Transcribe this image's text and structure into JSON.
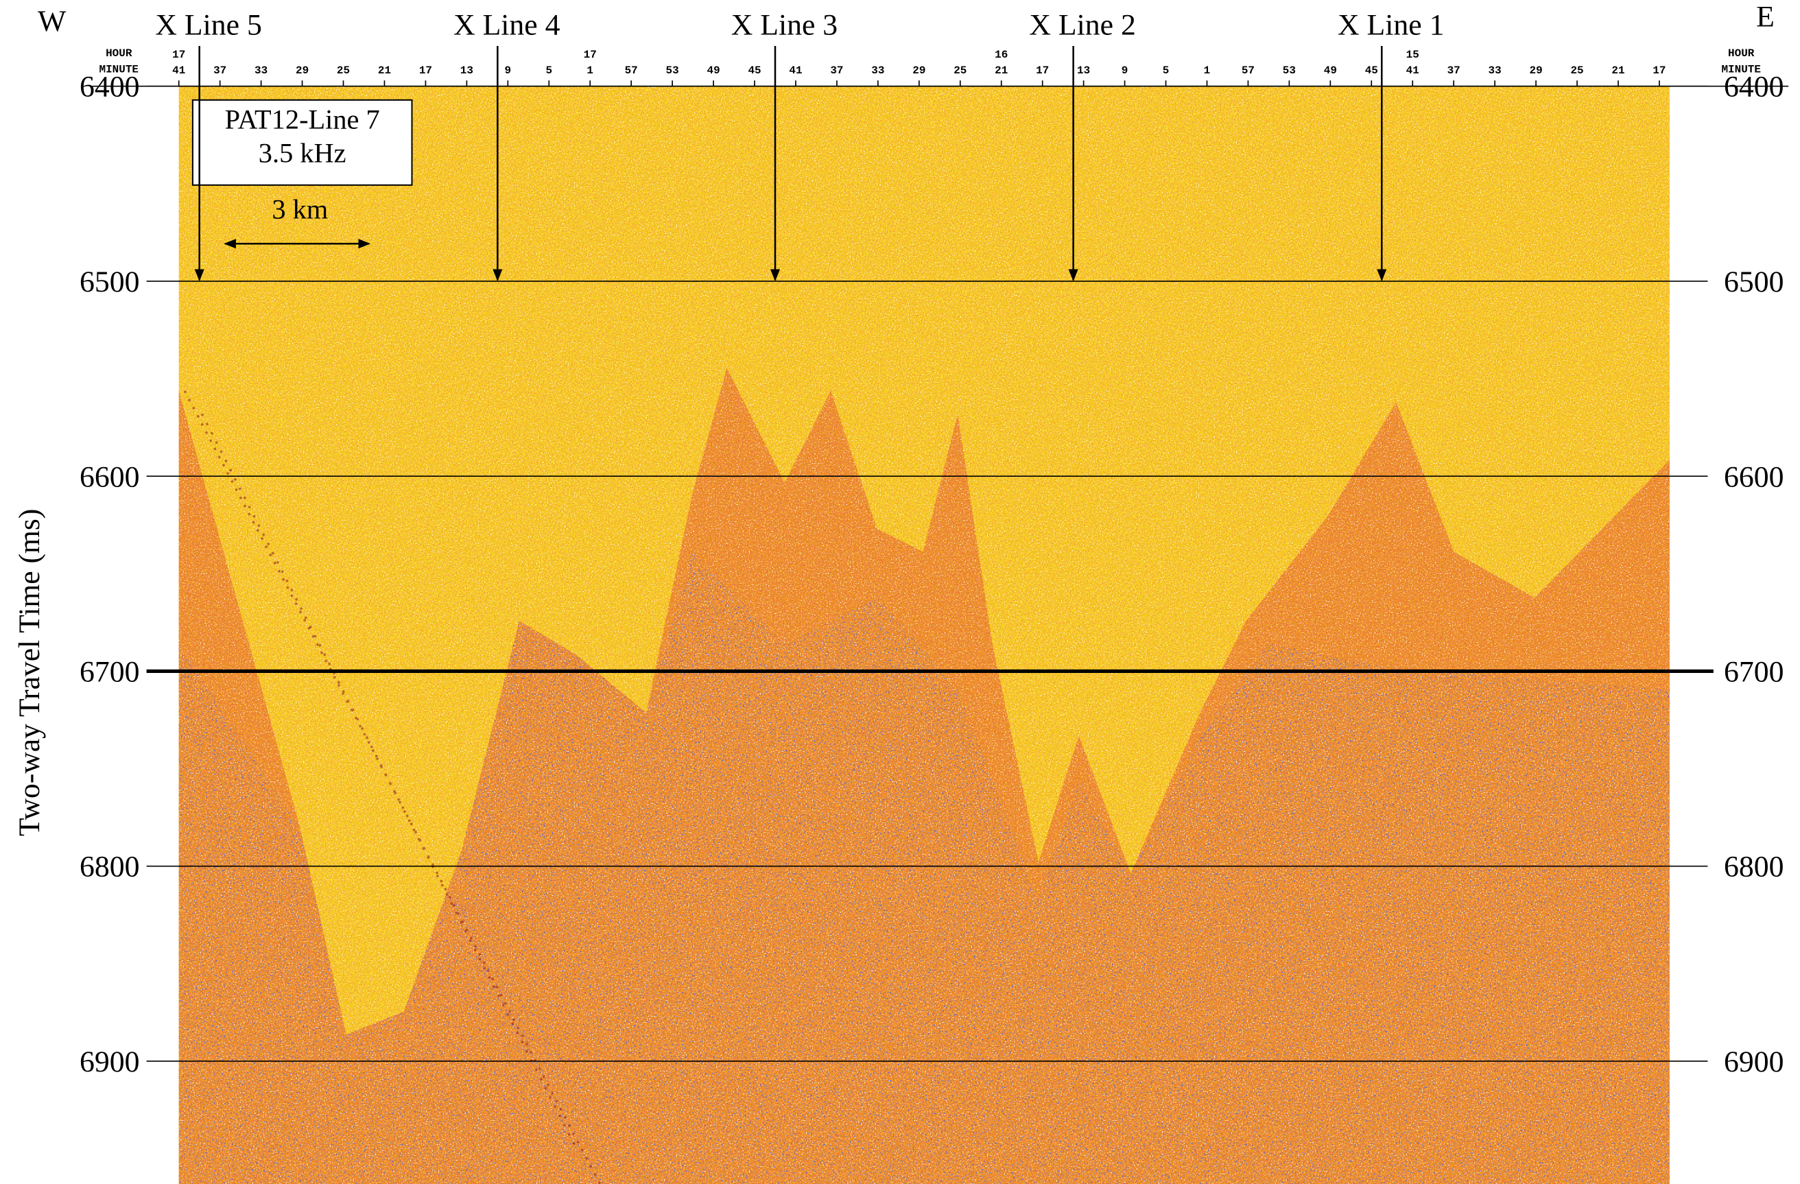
{
  "chart_data": {
    "type": "profile",
    "ylabel": "Two-way Travel Time (ms)",
    "ylim": [
      6963,
      6400
    ],
    "yticks": [
      6400,
      6500,
      6600,
      6700,
      6800,
      6900
    ],
    "bold_line": 6700,
    "grid": true,
    "xlim": [
      1061,
      916
    ],
    "xticks": [
      {
        "value": 1061,
        "label": "41"
      },
      {
        "value": 1057,
        "label": "37"
      },
      {
        "value": 1053,
        "label": "33"
      },
      {
        "value": 1049,
        "label": "29"
      },
      {
        "value": 1045,
        "label": "25"
      },
      {
        "value": 1041,
        "label": "21"
      },
      {
        "value": 1037,
        "label": "17"
      },
      {
        "value": 1033,
        "label": "13"
      },
      {
        "value": 1029,
        "label": "9"
      },
      {
        "value": 1025,
        "label": "5"
      },
      {
        "value": 1021,
        "label": "1"
      },
      {
        "value": 1017,
        "label": "57"
      },
      {
        "value": 1013,
        "label": "53"
      },
      {
        "value": 1009,
        "label": "49"
      },
      {
        "value": 1005,
        "label": "45"
      },
      {
        "value": 1001,
        "label": "41"
      },
      {
        "value": 997,
        "label": "37"
      },
      {
        "value": 993,
        "label": "33"
      },
      {
        "value": 989,
        "label": "29"
      },
      {
        "value": 985,
        "label": "25"
      },
      {
        "value": 981,
        "label": "21"
      },
      {
        "value": 977,
        "label": "17"
      },
      {
        "value": 973,
        "label": "13"
      },
      {
        "value": 969,
        "label": "9"
      },
      {
        "value": 965,
        "label": "5"
      },
      {
        "value": 961,
        "label": "1"
      },
      {
        "value": 957,
        "label": "57"
      },
      {
        "value": 953,
        "label": "53"
      },
      {
        "value": 949,
        "label": "49"
      },
      {
        "value": 945,
        "label": "45"
      },
      {
        "value": 941,
        "label": "41"
      },
      {
        "value": 937,
        "label": "37"
      },
      {
        "value": 933,
        "label": "33"
      },
      {
        "value": 929,
        "label": "29"
      },
      {
        "value": 925,
        "label": "25"
      },
      {
        "value": 921,
        "label": "21"
      },
      {
        "value": 917,
        "label": "17"
      }
    ],
    "x_hour_ticks": [
      {
        "value": 1061,
        "label": "17"
      },
      {
        "value": 1021,
        "label": "17"
      },
      {
        "value": 981,
        "label": "16"
      },
      {
        "value": 941,
        "label": "15"
      }
    ],
    "x_axis_names": [
      "HOUR",
      "MINUTE"
    ],
    "west": "W",
    "east": "E",
    "box_lines": [
      "PAT12-Line 7",
      "3.5 kHz"
    ],
    "scale_bar": "3 km",
    "arrows": [
      {
        "label": "X Line 5",
        "x": 1059,
        "y": 6500
      },
      {
        "label": "X Line 4",
        "x": 1030,
        "y": 6500
      },
      {
        "label": "X Line 3",
        "x": 1003,
        "y": 6500
      },
      {
        "label": "X Line 2",
        "x": 974,
        "y": 6500
      },
      {
        "label": "X Line 1",
        "x": 944,
        "y": 6500
      }
    ]
  }
}
